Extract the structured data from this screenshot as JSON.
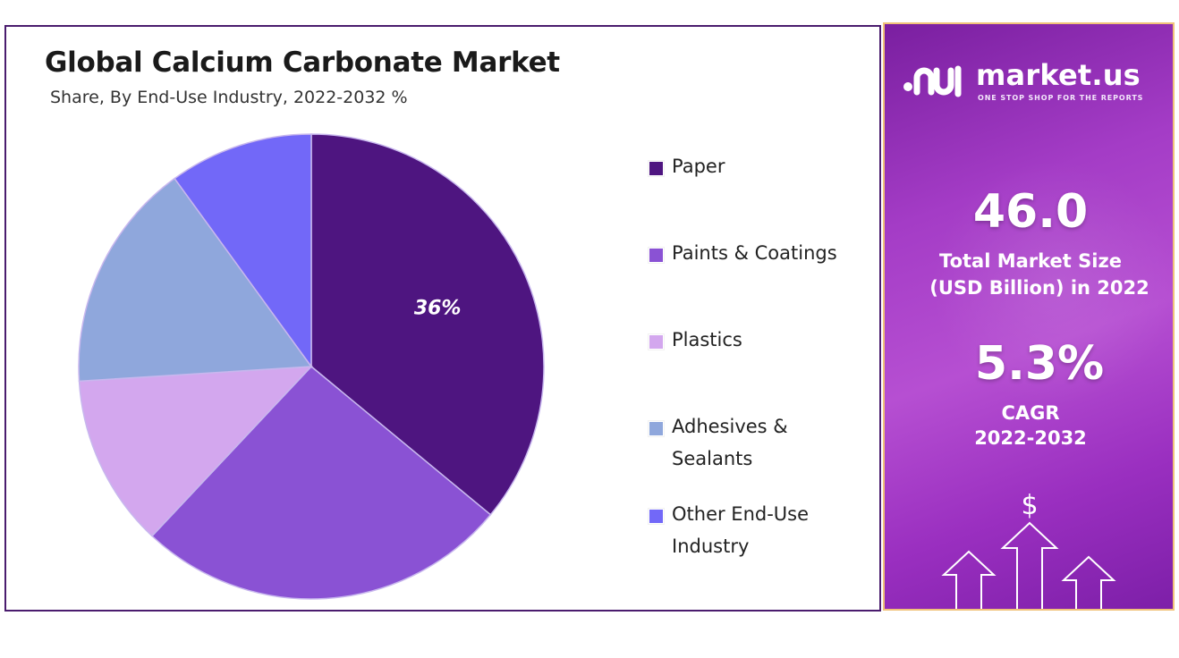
{
  "chart_data": {
    "type": "pie",
    "title": "Global Calcium Carbonate Market",
    "subtitle": "Share, By End-Use Industry, 2022-2032 %",
    "categories": [
      "Paper",
      "Paints & Coatings",
      "Plastics",
      "Adhesives & Sealants",
      "Other End-Use Industry"
    ],
    "values": [
      36,
      26,
      12,
      16,
      10
    ],
    "data_labels": [
      "36%",
      "",
      "",
      "",
      ""
    ],
    "colors": [
      "#4e1580",
      "#8a52d4",
      "#d3a7ee",
      "#8fa7dc",
      "#7268f8"
    ],
    "legend_labels": [
      "Paper",
      "Paints & Coatings",
      "Plastics",
      "Adhesives &\nSealants",
      "Other End-Use\nIndustry"
    ],
    "legend_placement": "right"
  },
  "sidebar": {
    "brand": "market.us",
    "tagline": "ONE STOP SHOP FOR THE REPORTS",
    "market_size_value": "46.0",
    "market_size_caption_line1": "Total Market Size",
    "market_size_caption_line2": "(USD Billion) in 2022",
    "cagr_value": "5.3%",
    "cagr_caption_line1": "CAGR",
    "cagr_caption_line2": "2022-2032",
    "dollar_sign": "$"
  }
}
